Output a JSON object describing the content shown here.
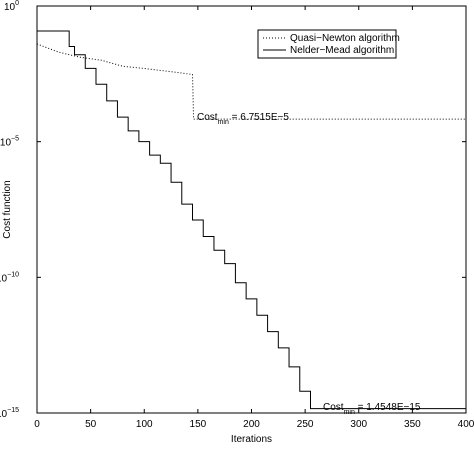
{
  "chart_data": {
    "type": "line",
    "xlabel": "Iterations",
    "ylabel": "Cost function",
    "xlim": [
      0,
      400
    ],
    "xticks": [
      0,
      50,
      100,
      150,
      200,
      250,
      300,
      350,
      400
    ],
    "ylim": [
      1e-15,
      1
    ],
    "log_y": true,
    "yticks": [
      {
        "value": 1,
        "label": "10",
        "exponent": "0"
      },
      {
        "value": 1e-05,
        "label": "10",
        "exponent": "−5"
      },
      {
        "value": 1e-10,
        "label": "10",
        "exponent": "−10"
      },
      {
        "value": 1e-15,
        "label": "10",
        "exponent": "−15"
      }
    ],
    "legend_position": "upper right",
    "series": [
      {
        "name": "Quasi−Newton algorithm",
        "color": "#000000",
        "style": "dotted",
        "x": [
          0,
          20,
          40,
          60,
          80,
          100,
          120,
          145,
          146,
          400
        ],
        "values": [
          0.04,
          0.02,
          0.013,
          0.01,
          0.006,
          0.005,
          0.004,
          0.003,
          6.7515e-05,
          6.7515e-05
        ]
      },
      {
        "name": "Nelder−Mead algorithm",
        "color": "#000000",
        "style": "solid",
        "drawstyle": "steps-post",
        "x": [
          0,
          30,
          35,
          45,
          55,
          65,
          75,
          85,
          95,
          105,
          115,
          125,
          135,
          145,
          155,
          165,
          175,
          185,
          195,
          205,
          215,
          225,
          235,
          245,
          255,
          400
        ],
        "values": [
          0.12,
          0.032,
          0.016,
          0.005,
          0.0013,
          0.00032,
          8e-05,
          2.5e-05,
          1e-05,
          3.2e-06,
          1.6e-06,
          3.2e-07,
          5e-08,
          1.3e-08,
          3.2e-09,
          1e-09,
          3.2e-10,
          6.3e-11,
          1.6e-11,
          4e-12,
          1e-12,
          2.5e-13,
          5e-14,
          6.3e-15,
          1.4548e-15,
          1.4548e-15
        ]
      }
    ],
    "annotations": [
      {
        "text": "Cost",
        "subscript": "min",
        "rest": " = 6.7515E−5"
      },
      {
        "text": "Cost",
        "subscript": "min",
        "rest": " = 1.4548E−15"
      }
    ]
  }
}
